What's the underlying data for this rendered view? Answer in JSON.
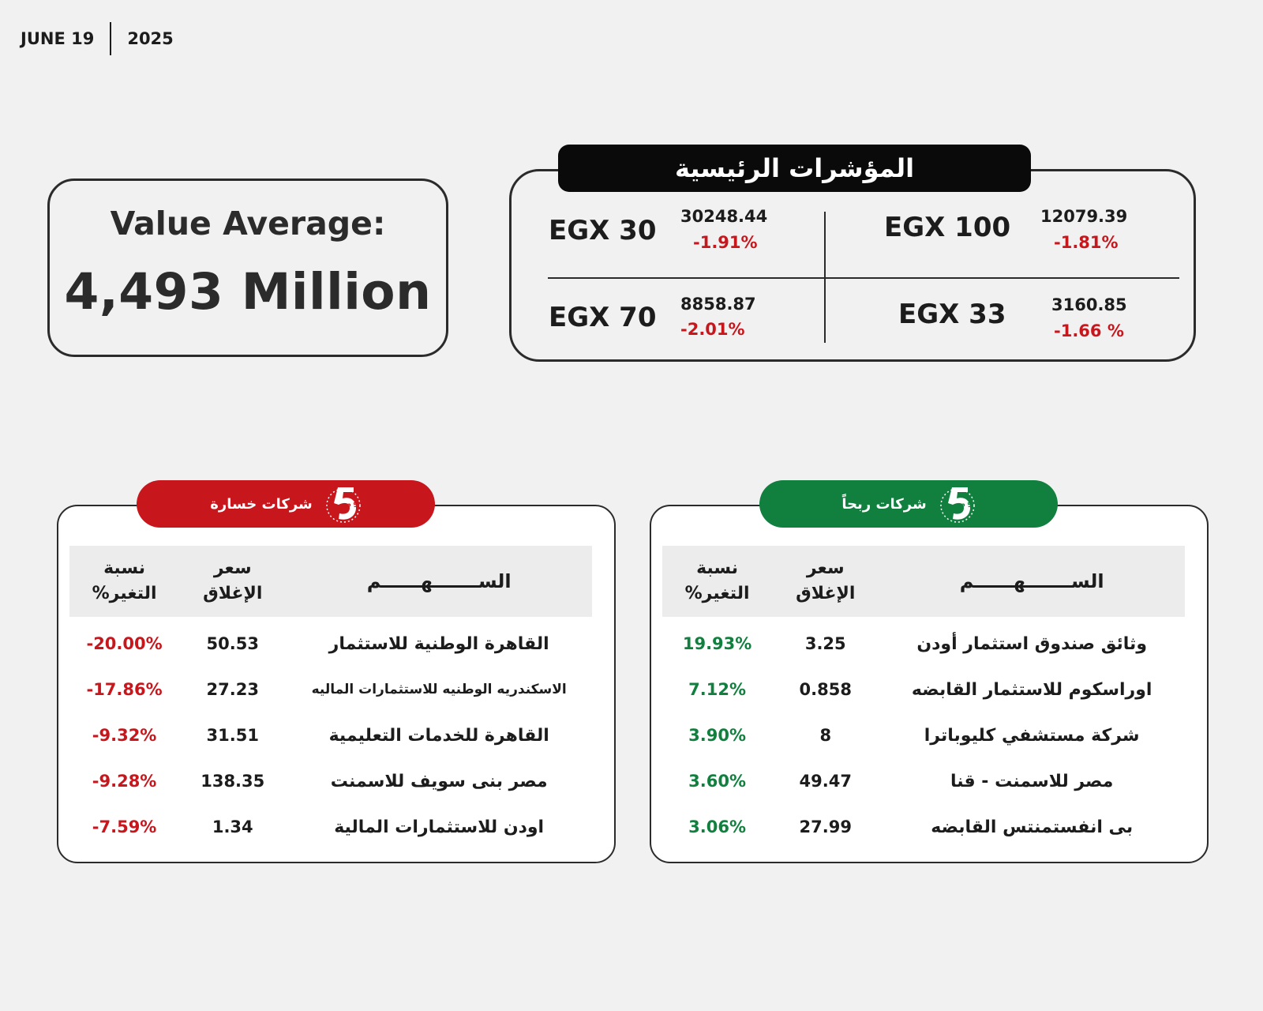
{
  "date": {
    "month_day": "JUNE 19",
    "year": "2025"
  },
  "value_average": {
    "label": "Value Average:",
    "value": "4,493 Million"
  },
  "indices": {
    "title": "المؤشرات الرئيسية",
    "items": [
      {
        "name": "EGX 30",
        "value": "30248.44",
        "change": "-1.91%"
      },
      {
        "name": "EGX 100",
        "value": "12079.39",
        "change": "-1.81%"
      },
      {
        "name": "EGX 70",
        "value": "8858.87",
        "change": "-2.01%"
      },
      {
        "name": "EGX 33",
        "value": "3160.85",
        "change": "-1.66 %"
      }
    ]
  },
  "losers": {
    "title": "شركات خسارة",
    "badge": "TOP 5",
    "headers": {
      "name": "الســـــــهــــــم",
      "price_1": "سعر",
      "price_2": "الإغلاق",
      "change_1": "نسبة",
      "change_2": "التغير%"
    },
    "rows": [
      {
        "name": "القاهرة الوطنية للاستثمار",
        "price": "50.53",
        "change": "-20.00%"
      },
      {
        "name": "الاسكندريه الوطنيه للاستثمارات الماليه",
        "price": "27.23",
        "change": "-17.86%"
      },
      {
        "name": "القاهرة للخدمات التعليمية",
        "price": "31.51",
        "change": "-9.32%"
      },
      {
        "name": "مصر بنى سويف للاسمنت",
        "price": "138.35",
        "change": "-9.28%"
      },
      {
        "name": "اودن للاستثمارات المالية",
        "price": "1.34",
        "change": "-7.59%"
      }
    ]
  },
  "gainers": {
    "title": "شركات ربحاً",
    "badge": "TOP 5",
    "headers": {
      "name": "الســـــــهــــــم",
      "price_1": "سعر",
      "price_2": "الإغلاق",
      "change_1": "نسبة",
      "change_2": "التغير%"
    },
    "rows": [
      {
        "name": "وثائق صندوق استثمار أودن",
        "price": "3.25",
        "change": "19.93%"
      },
      {
        "name": "اوراسكوم للاستثمار القابضه",
        "price": "0.858",
        "change": "7.12%"
      },
      {
        "name": "شركة مستشفي كليوباترا",
        "price": "8",
        "change": "3.90%"
      },
      {
        "name": "مصر للاسمنت - قنا",
        "price": "49.47",
        "change": "3.60%"
      },
      {
        "name": "بى انفستمنتس القابضه",
        "price": "27.99",
        "change": "3.06%"
      }
    ]
  },
  "colors": {
    "loss": "#c8161d",
    "gain": "#11803f",
    "title_bar": "#0a0a0a"
  }
}
